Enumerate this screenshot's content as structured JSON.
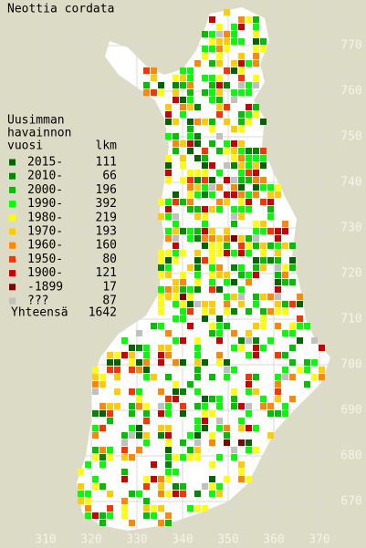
{
  "title": "Neottia cordata",
  "legend": {
    "heading": [
      "Uusimman",
      "havainnon"
    ],
    "columns": [
      "vuosi",
      "lkm"
    ],
    "entries": [
      {
        "label": "2015-",
        "count": 111,
        "color": "#006400"
      },
      {
        "label": "2010-",
        "count": 66,
        "color": "#008800"
      },
      {
        "label": "2000-",
        "count": 196,
        "color": "#00c000"
      },
      {
        "label": "1990-",
        "count": 392,
        "color": "#00ff00"
      },
      {
        "label": "1980-",
        "count": 219,
        "color": "#ffff00"
      },
      {
        "label": "1970-",
        "count": 193,
        "color": "#ffcc00"
      },
      {
        "label": "1960-",
        "count": 160,
        "color": "#ff8800"
      },
      {
        "label": "1950-",
        "count": 80,
        "color": "#ff3300"
      },
      {
        "label": "1900-",
        "count": 121,
        "color": "#cc0000"
      },
      {
        "label": "-1899",
        "count": 17,
        "color": "#800000"
      },
      {
        "label": "???",
        "count": 87,
        "color": "#c0c0c0"
      }
    ],
    "total_label": "Yhteensä",
    "total": 1642
  },
  "axis": {
    "north": [
      770,
      760,
      750,
      740,
      730,
      720,
      710,
      700,
      690,
      680,
      670
    ],
    "east": [
      310,
      320,
      330,
      340,
      350,
      360,
      370
    ]
  }
}
